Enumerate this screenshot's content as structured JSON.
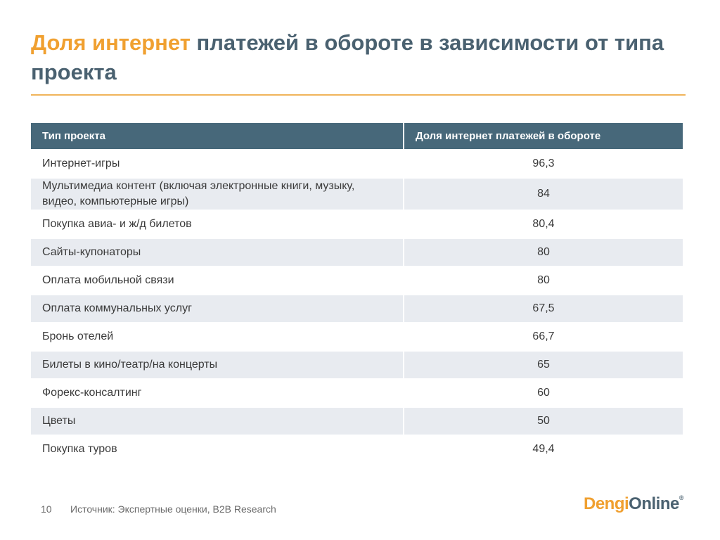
{
  "title": {
    "accent": "Доля интернет",
    "rest": " платежей в обороте в зависимости от типа проекта"
  },
  "table": {
    "headers": [
      "Тип проекта",
      "Доля интернет платежей в обороте"
    ],
    "rows": [
      {
        "type": "Интернет-игры",
        "share": "96,3"
      },
      {
        "type": "Мультимедиа контент (включая электронные книги, музыку, видео, компьютерные игры)",
        "share": "84"
      },
      {
        "type": "Покупка авиа- и ж/д билетов",
        "share": "80,4"
      },
      {
        "type": "Сайты-купонаторы",
        "share": "80"
      },
      {
        "type": "Оплата мобильной связи",
        "share": "80"
      },
      {
        "type": "Оплата коммунальных услуг",
        "share": "67,5"
      },
      {
        "type": "Бронь отелей",
        "share": "66,7"
      },
      {
        "type": "Билеты в кино/театр/на концерты",
        "share": "65"
      },
      {
        "type": "Форекс-консалтинг",
        "share": "60"
      },
      {
        "type": "Цветы",
        "share": "50"
      },
      {
        "type": "Покупка туров",
        "share": "49,4"
      }
    ]
  },
  "footer": {
    "page_number": "10",
    "source": "Источник: Экспертные оценки, B2B Research"
  },
  "logo": {
    "part1": "Dengi",
    "part2": "Online",
    "mark": "®",
    "colors": {
      "part1": "#f0a030",
      "part2": "#4a6170"
    }
  }
}
